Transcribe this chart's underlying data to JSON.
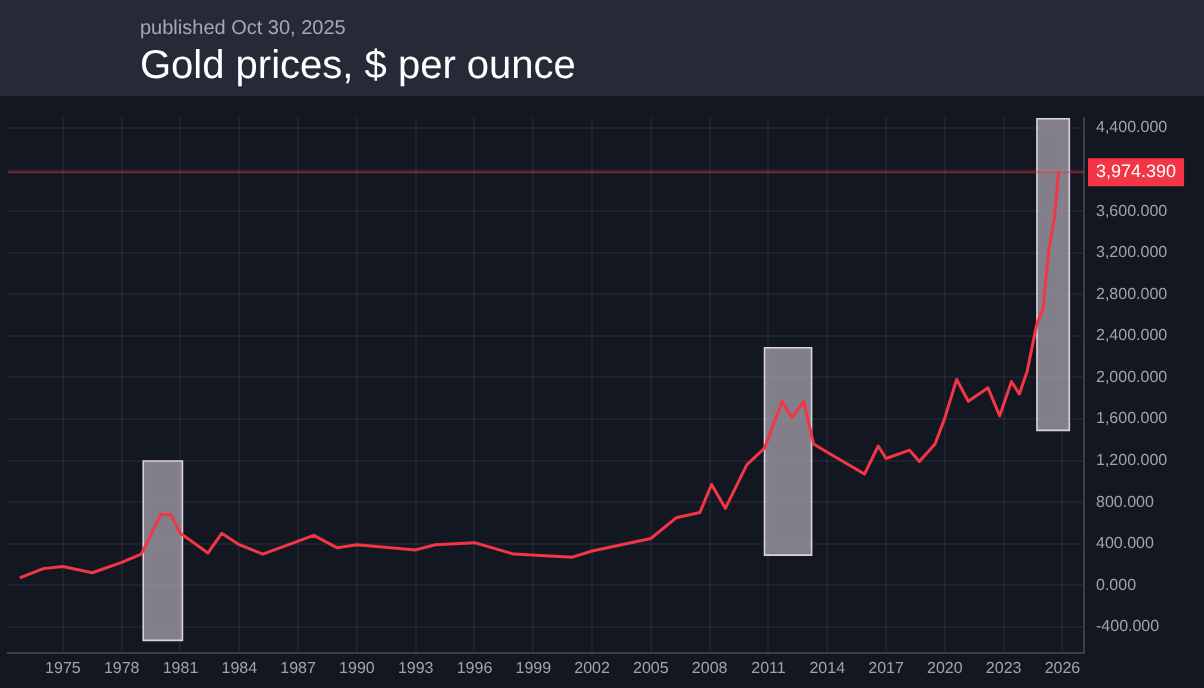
{
  "chart_data": {
    "type": "line",
    "title": "Gold prices, $ per ounce",
    "subtitle": "published Oct 30, 2025",
    "x": [
      1972.8,
      1974,
      1975,
      1976.5,
      1978,
      1979,
      1980,
      1980.5,
      1981,
      1982.4,
      1983.1,
      1984,
      1985.2,
      1987.8,
      1989,
      1990,
      1993,
      1994,
      1996,
      1998,
      2001,
      2002,
      2005,
      2006.3,
      2007.5,
      2008.1,
      2008.8,
      2009.9,
      2010.8,
      2011.7,
      2012.2,
      2012.8,
      2013.3,
      2014,
      2015.9,
      2016.6,
      2017,
      2018.2,
      2018.7,
      2019.5,
      2020,
      2020.6,
      2021.2,
      2022.2,
      2022.8,
      2023.4,
      2023.8,
      2024.2,
      2024.7,
      2025,
      2025.3,
      2025.6,
      2025.8
    ],
    "series": [
      {
        "color": "#f23645",
        "values": [
          70,
          160,
          180,
          120,
          220,
          300,
          680,
          680,
          500,
          310,
          500,
          390,
          300,
          480,
          360,
          390,
          340,
          390,
          410,
          300,
          270,
          330,
          450,
          650,
          700,
          970,
          740,
          1160,
          1320,
          1770,
          1610,
          1770,
          1360,
          1280,
          1070,
          1340,
          1220,
          1300,
          1190,
          1360,
          1610,
          1980,
          1770,
          1900,
          1630,
          1960,
          1840,
          2060,
          2520,
          2650,
          3220,
          3550,
          3974.39
        ]
      }
    ],
    "xlim": [
      1972.2,
      2027.1
    ],
    "xticks": [
      1975,
      1978,
      1981,
      1984,
      1987,
      1990,
      1993,
      1996,
      1999,
      2002,
      2005,
      2008,
      2011,
      2014,
      2017,
      2020,
      2023,
      2026
    ],
    "ylim": [
      -650,
      4500
    ],
    "yticks": [
      {
        "value": -400,
        "label": "-400.000"
      },
      {
        "value": 0,
        "label": "0.000"
      },
      {
        "value": 400,
        "label": "400.000"
      },
      {
        "value": 800,
        "label": "800.000"
      },
      {
        "value": 1200,
        "label": "1,200.000"
      },
      {
        "value": 1600,
        "label": "1,600.000"
      },
      {
        "value": 2000,
        "label": "2,000.000"
      },
      {
        "value": 2400,
        "label": "2,400.000"
      },
      {
        "value": 2800,
        "label": "2,800.000"
      },
      {
        "value": 3200,
        "label": "3,200.000"
      },
      {
        "value": 3600,
        "label": "3,600.000"
      },
      {
        "value": 4000,
        "label": null
      },
      {
        "value": 4400,
        "label": "4,400.000"
      }
    ],
    "ref_lines": [
      {
        "axis": "y",
        "value": 3974.39,
        "label": "3,974.390",
        "color": "#f23645"
      }
    ],
    "bands": [
      {
        "axis": "x",
        "from": 1979.1,
        "to": 1981.1,
        "color": "#a8a3ad"
      },
      {
        "axis": "x",
        "from": 2010.8,
        "to": 2013.2,
        "color": "#a8a3ad"
      },
      {
        "axis": "x",
        "from": 2024.7,
        "to": 2026.35,
        "color": "#a8a3ad"
      }
    ],
    "grid": true,
    "legend": false,
    "marker": "none",
    "line_style": "solid"
  }
}
